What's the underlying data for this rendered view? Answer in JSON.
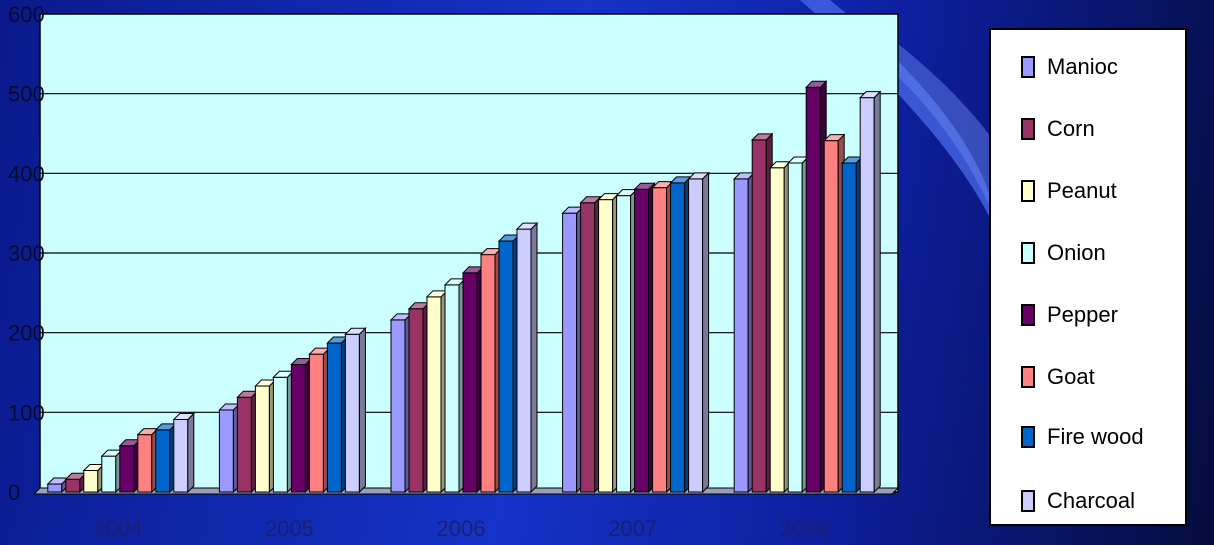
{
  "chart_data": {
    "type": "bar",
    "categories": [
      "2004",
      "2005",
      "2006",
      "2007",
      "2008"
    ],
    "ylim": [
      0,
      600
    ],
    "yticks": [
      "0",
      "100",
      "200",
      "300",
      "400",
      "500",
      "600"
    ],
    "grid": true,
    "legend_position": "right",
    "series": [
      {
        "name": "Manioc",
        "color": "#9999ff",
        "values": [
          10,
          103,
          216,
          350,
          393
        ]
      },
      {
        "name": "Corn",
        "color": "#993366",
        "values": [
          16,
          119,
          230,
          363,
          442
        ]
      },
      {
        "name": "Peanut",
        "color": "#ffffcc",
        "values": [
          27,
          133,
          245,
          367,
          407
        ]
      },
      {
        "name": "Onion",
        "color": "#ccffff",
        "values": [
          45,
          144,
          260,
          372,
          413
        ]
      },
      {
        "name": "Pepper",
        "color": "#660066",
        "values": [
          58,
          160,
          275,
          380,
          508
        ]
      },
      {
        "name": "Goat",
        "color": "#ff8080",
        "values": [
          72,
          173,
          298,
          382,
          441
        ]
      },
      {
        "name": "Fire wood",
        "color": "#0066cc",
        "values": [
          78,
          187,
          315,
          388,
          413
        ]
      },
      {
        "name": "Charcoal",
        "color": "#ccccff",
        "values": [
          91,
          198,
          330,
          393,
          495
        ]
      }
    ]
  }
}
